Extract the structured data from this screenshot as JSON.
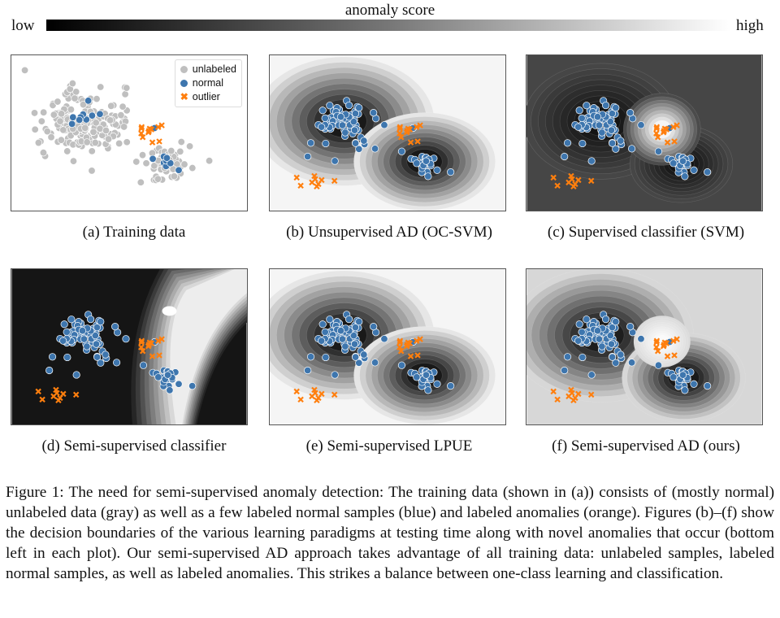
{
  "colorbar": {
    "title": "anomaly score",
    "low": "low",
    "high": "high"
  },
  "legend": {
    "unlabeled": "unlabeled",
    "normal": "normal",
    "outlier": "outlier"
  },
  "colors": {
    "unlabeled": "#bfbfbf",
    "normal": "#3e76ae",
    "outlier": "#ff7f0e"
  },
  "panels": [
    {
      "label": "(a)  Training data",
      "style": "training"
    },
    {
      "label": "(b)  Unsupervised AD (OC-SVM)",
      "style": "ocsvm"
    },
    {
      "label": "(c)  Supervised classifier (SVM)",
      "style": "svm"
    },
    {
      "label": "(d)  Semi-supervised classifier",
      "style": "semiclf"
    },
    {
      "label": "(e)  Semi-supervised LPUE",
      "style": "lpue"
    },
    {
      "label": "(f)  Semi-supervised AD (ours)",
      "style": "ours"
    }
  ],
  "caption": "Figure 1: The need for semi-supervised anomaly detection: The training data (shown in (a)) consists of (mostly normal) unlabeled data (gray) as well as a few labeled normal samples (blue) and labeled anomalies (orange). Figures (b)–(f) show the decision boundaries of the various learning paradigms at testing time along with novel anomalies that occur (bottom left in each plot). Our semi-supervised AD approach takes advantage of all training data: unlabeled samples, labeled normal samples, as well as labeled anomalies. This strikes a balance between one-class learning and classification."
}
